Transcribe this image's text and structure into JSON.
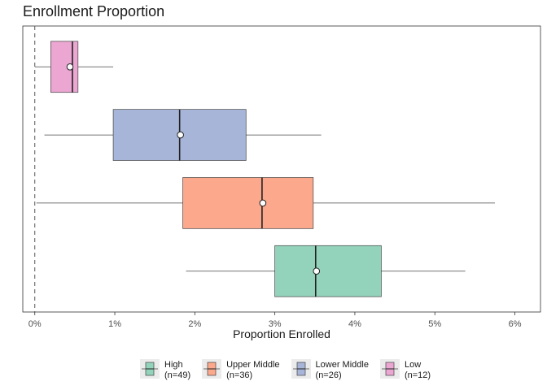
{
  "chart_data": {
    "type": "boxplot",
    "title": "Enrollment Proportion",
    "xlabel": "Proportion Enrolled",
    "ylabel": "",
    "xlim": [
      -0.0015,
      0.0632
    ],
    "x_ticks": [
      0,
      0.01,
      0.02,
      0.03,
      0.04,
      0.05,
      0.06
    ],
    "x_tick_labels": [
      "0%",
      "1%",
      "2%",
      "3%",
      "4%",
      "5%",
      "6%"
    ],
    "reference_line": {
      "x": 0,
      "style": "dashed"
    },
    "grid": false,
    "legend_position": "bottom",
    "series": [
      {
        "name": "High",
        "n_label": "(n=49)",
        "color": "#93d2bb",
        "whisker_low": 0.0189,
        "q1": 0.03,
        "median": 0.0351,
        "q3": 0.0433,
        "whisker_high": 0.0538,
        "mean": 0.0352
      },
      {
        "name": "Upper Middle",
        "n_label": "(n=36)",
        "color": "#fba88c",
        "whisker_low": 0.0002,
        "q1": 0.0185,
        "median": 0.0284,
        "q3": 0.0348,
        "whisker_high": 0.0575,
        "mean": 0.0285
      },
      {
        "name": "Lower Middle",
        "n_label": "(n=26)",
        "color": "#a7b5d8",
        "whisker_low": 0.0012,
        "q1": 0.0098,
        "median": 0.0181,
        "q3": 0.0264,
        "whisker_high": 0.0358,
        "mean": 0.0182
      },
      {
        "name": "Low",
        "n_label": "(n=12)",
        "color": "#eba6d2",
        "whisker_low": 0.0,
        "q1": 0.002,
        "median": 0.0047,
        "q3": 0.0054,
        "whisker_high": 0.0098,
        "mean": 0.0044
      }
    ]
  }
}
